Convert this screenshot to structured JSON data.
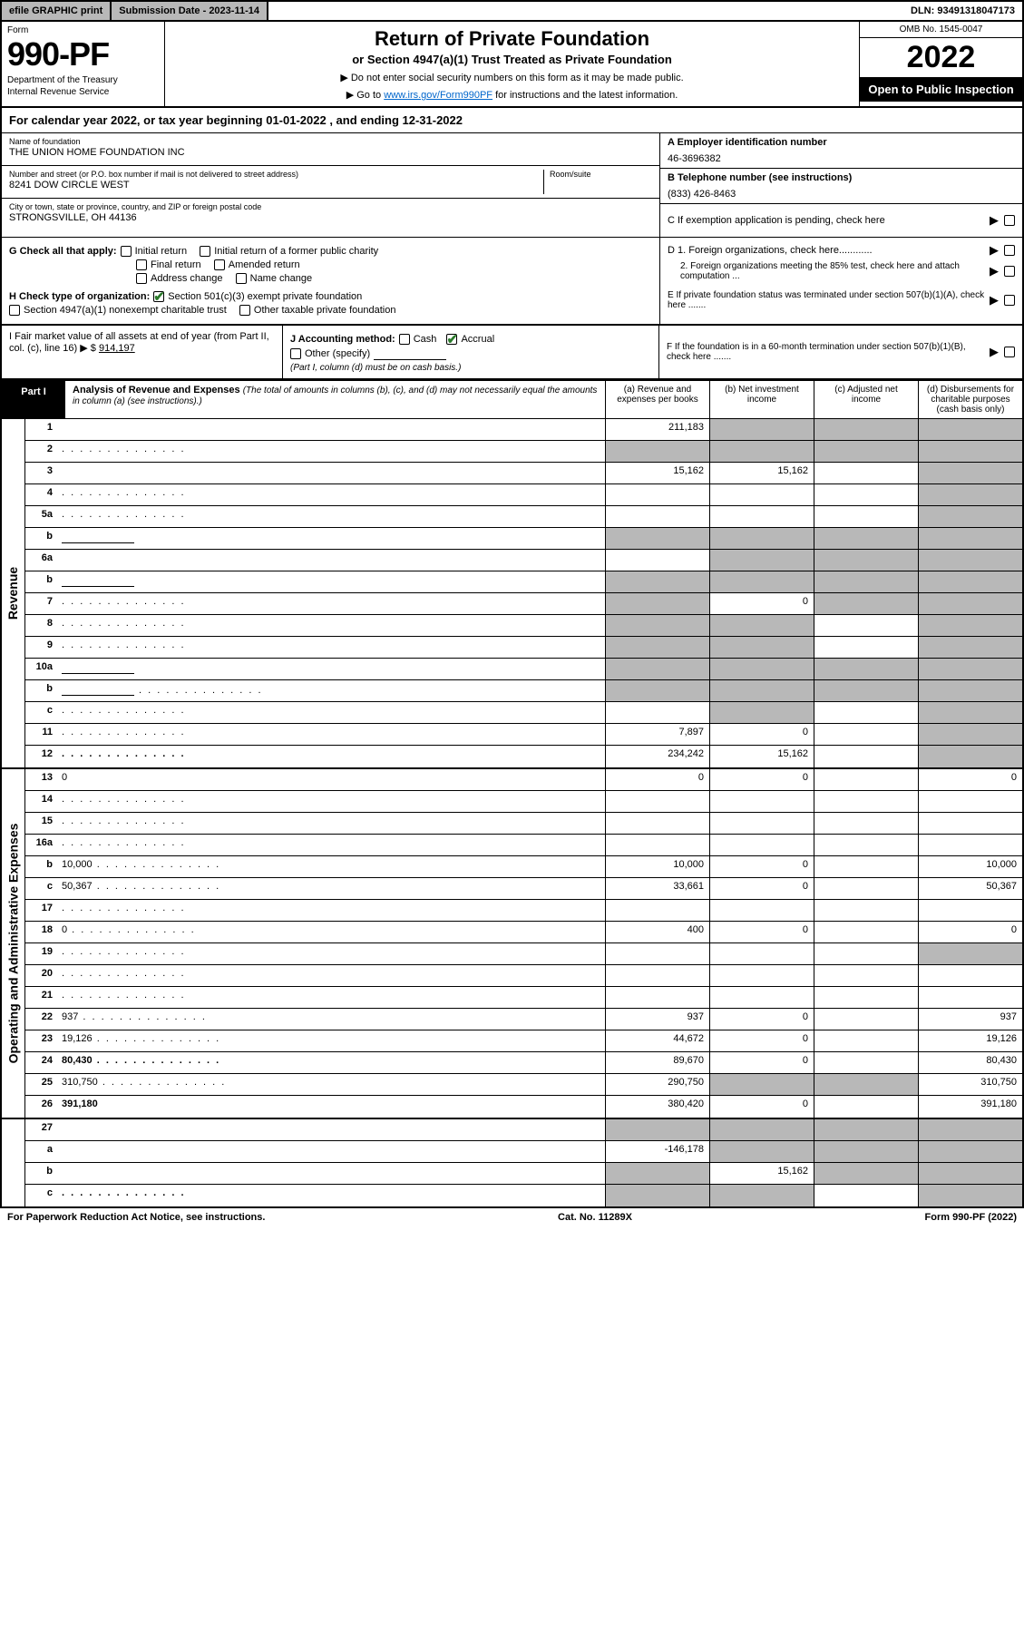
{
  "topbar": {
    "efile": "efile GRAPHIC print",
    "submission": "Submission Date - 2023-11-14",
    "dln": "DLN: 93491318047173"
  },
  "header": {
    "form_label": "Form",
    "form_number": "990-PF",
    "dept1": "Department of the Treasury",
    "dept2": "Internal Revenue Service",
    "title": "Return of Private Foundation",
    "subtitle": "or Section 4947(a)(1) Trust Treated as Private Foundation",
    "note1": "▶ Do not enter social security numbers on this form as it may be made public.",
    "note2_pre": "▶ Go to ",
    "note2_link": "www.irs.gov/Form990PF",
    "note2_post": " for instructions and the latest information.",
    "omb": "OMB No. 1545-0047",
    "year": "2022",
    "open": "Open to Public Inspection"
  },
  "calyear": "For calendar year 2022, or tax year beginning 01-01-2022           , and ending 12-31-2022",
  "entity": {
    "name_label": "Name of foundation",
    "name": "THE UNION HOME FOUNDATION INC",
    "addr_label": "Number and street (or P.O. box number if mail is not delivered to street address)",
    "addr": "8241 DOW CIRCLE WEST",
    "suite_label": "Room/suite",
    "suite": "",
    "city_label": "City or town, state or province, country, and ZIP or foreign postal code",
    "city": "STRONGSVILLE, OH  44136",
    "ein_label": "A Employer identification number",
    "ein": "46-3696382",
    "phone_label": "B Telephone number (see instructions)",
    "phone": "(833) 426-8463",
    "c_label": "C If exemption application is pending, check here"
  },
  "checks": {
    "g_label": "G Check all that apply:",
    "g_opts": [
      "Initial return",
      "Initial return of a former public charity",
      "Final return",
      "Amended return",
      "Address change",
      "Name change"
    ],
    "h_label": "H Check type of organization:",
    "h1": "Section 501(c)(3) exempt private foundation",
    "h2": "Section 4947(a)(1) nonexempt charitable trust",
    "h3": "Other taxable private foundation",
    "d1": "D 1. Foreign organizations, check here............",
    "d2": "2. Foreign organizations meeting the 85% test, check here and attach computation ...",
    "e": "E  If private foundation status was terminated under section 507(b)(1)(A), check here .......",
    "i_label": "I Fair market value of all assets at end of year (from Part II, col. (c), line 16)",
    "i_val": "914,197",
    "j_label": "J Accounting method:",
    "j_cash": "Cash",
    "j_accr": "Accrual",
    "j_other": "Other (specify)",
    "j_note": "(Part I, column (d) must be on cash basis.)",
    "f": "F  If the foundation is in a 60-month termination under section 507(b)(1)(B), check here ......."
  },
  "part1": {
    "badge": "Part I",
    "title": "Analysis of Revenue and Expenses",
    "note": "(The total of amounts in columns (b), (c), and (d) may not necessarily equal the amounts in column (a) (see instructions).)",
    "col_a": "(a)   Revenue and expenses per books",
    "col_b": "(b)   Net investment income",
    "col_c": "(c)   Adjusted net income",
    "col_d": "(d)  Disbursements for charitable purposes (cash basis only)"
  },
  "side_rev": "Revenue",
  "side_exp": "Operating and Administrative Expenses",
  "rows_rev": [
    {
      "n": "1",
      "d": "",
      "a": "211,183",
      "b": "",
      "c": "",
      "shade_b": true,
      "shade_c": true,
      "shade_d": true
    },
    {
      "n": "2",
      "d": "",
      "a": "",
      "b": "",
      "c": "",
      "shade_a": true,
      "shade_b": true,
      "shade_c": true,
      "shade_d": true,
      "dots": true
    },
    {
      "n": "3",
      "d": "",
      "a": "15,162",
      "b": "15,162",
      "c": "",
      "shade_d": true
    },
    {
      "n": "4",
      "d": "",
      "a": "",
      "b": "",
      "c": "",
      "shade_d": true,
      "dots": true
    },
    {
      "n": "5a",
      "d": "",
      "a": "",
      "b": "",
      "c": "",
      "shade_d": true,
      "dots": true
    },
    {
      "n": "b",
      "d": "",
      "a": "",
      "b": "",
      "c": "",
      "shade_a": true,
      "shade_b": true,
      "shade_c": true,
      "shade_d": true,
      "inline": true
    },
    {
      "n": "6a",
      "d": "",
      "a": "",
      "b": "",
      "c": "",
      "shade_b": true,
      "shade_c": true,
      "shade_d": true
    },
    {
      "n": "b",
      "d": "",
      "a": "",
      "b": "",
      "c": "",
      "shade_a": true,
      "shade_b": true,
      "shade_c": true,
      "shade_d": true,
      "inline": true
    },
    {
      "n": "7",
      "d": "",
      "a": "",
      "b": "0",
      "c": "",
      "shade_a": true,
      "shade_c": true,
      "shade_d": true,
      "dots": true
    },
    {
      "n": "8",
      "d": "",
      "a": "",
      "b": "",
      "c": "",
      "shade_a": true,
      "shade_b": true,
      "shade_d": true,
      "dots": true
    },
    {
      "n": "9",
      "d": "",
      "a": "",
      "b": "",
      "c": "",
      "shade_a": true,
      "shade_b": true,
      "shade_d": true,
      "dots": true
    },
    {
      "n": "10a",
      "d": "",
      "a": "",
      "b": "",
      "c": "",
      "shade_a": true,
      "shade_b": true,
      "shade_c": true,
      "shade_d": true,
      "inline": true
    },
    {
      "n": "b",
      "d": "",
      "a": "",
      "b": "",
      "c": "",
      "shade_a": true,
      "shade_b": true,
      "shade_c": true,
      "shade_d": true,
      "inline": true,
      "dots": true
    },
    {
      "n": "c",
      "d": "",
      "a": "",
      "b": "",
      "c": "",
      "shade_b": true,
      "shade_d": true,
      "dots": true
    },
    {
      "n": "11",
      "d": "",
      "a": "7,897",
      "b": "0",
      "c": "",
      "shade_d": true,
      "dots": true
    },
    {
      "n": "12",
      "d": "",
      "a": "234,242",
      "b": "15,162",
      "c": "",
      "bold": true,
      "shade_d": true,
      "dots": true
    }
  ],
  "rows_exp": [
    {
      "n": "13",
      "d": "0",
      "a": "0",
      "b": "0",
      "c": ""
    },
    {
      "n": "14",
      "d": "",
      "a": "",
      "b": "",
      "c": "",
      "dots": true
    },
    {
      "n": "15",
      "d": "",
      "a": "",
      "b": "",
      "c": "",
      "dots": true
    },
    {
      "n": "16a",
      "d": "",
      "a": "",
      "b": "",
      "c": "",
      "dots": true
    },
    {
      "n": "b",
      "d": "10,000",
      "a": "10,000",
      "b": "0",
      "c": "",
      "dots": true
    },
    {
      "n": "c",
      "d": "50,367",
      "a": "33,661",
      "b": "0",
      "c": "",
      "dots": true
    },
    {
      "n": "17",
      "d": "",
      "a": "",
      "b": "",
      "c": "",
      "dots": true
    },
    {
      "n": "18",
      "d": "0",
      "a": "400",
      "b": "0",
      "c": "",
      "dots": true
    },
    {
      "n": "19",
      "d": "",
      "a": "",
      "b": "",
      "c": "",
      "shade_d": true,
      "dots": true
    },
    {
      "n": "20",
      "d": "",
      "a": "",
      "b": "",
      "c": "",
      "dots": true
    },
    {
      "n": "21",
      "d": "",
      "a": "",
      "b": "",
      "c": "",
      "dots": true
    },
    {
      "n": "22",
      "d": "937",
      "a": "937",
      "b": "0",
      "c": "",
      "dots": true
    },
    {
      "n": "23",
      "d": "19,126",
      "a": "44,672",
      "b": "0",
      "c": "",
      "dots": true
    },
    {
      "n": "24",
      "d": "80,430",
      "a": "89,670",
      "b": "0",
      "c": "",
      "bold": true,
      "dots": true
    },
    {
      "n": "25",
      "d": "310,750",
      "a": "290,750",
      "b": "",
      "c": "",
      "shade_b": true,
      "shade_c": true,
      "dots": true
    },
    {
      "n": "26",
      "d": "391,180",
      "a": "380,420",
      "b": "0",
      "c": "",
      "bold": true
    }
  ],
  "rows_net": [
    {
      "n": "27",
      "d": "",
      "a": "",
      "b": "",
      "c": "",
      "shade_a": true,
      "shade_b": true,
      "shade_c": true,
      "shade_d": true
    },
    {
      "n": "a",
      "d": "",
      "a": "-146,178",
      "b": "",
      "c": "",
      "bold": true,
      "shade_b": true,
      "shade_c": true,
      "shade_d": true
    },
    {
      "n": "b",
      "d": "",
      "a": "",
      "b": "15,162",
      "c": "",
      "bold": true,
      "shade_a": true,
      "shade_c": true,
      "shade_d": true
    },
    {
      "n": "c",
      "d": "",
      "a": "",
      "b": "",
      "c": "",
      "bold": true,
      "shade_a": true,
      "shade_b": true,
      "shade_d": true,
      "dots": true
    }
  ],
  "footer": {
    "left": "For Paperwork Reduction Act Notice, see instructions.",
    "mid": "Cat. No. 11289X",
    "right": "Form 990-PF (2022)"
  }
}
